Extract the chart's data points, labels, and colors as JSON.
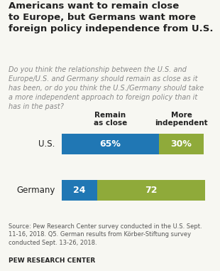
{
  "title": "Americans want to remain close\nto Europe, but Germans want more\nforeign policy independence from U.S.",
  "subtitle": "Do you think the relationship between the U.S. and\nEurope/U.S. and Germany should remain as close as it\nhas been, or do you think the U.S./Germany should take\na more independent approach to foreign policy than it\nhas in the past?",
  "categories": [
    "U.S.",
    "Germany"
  ],
  "remain_close": [
    65,
    24
  ],
  "more_independent": [
    30,
    72
  ],
  "remain_labels": [
    "65%",
    "24"
  ],
  "independent_labels": [
    "30%",
    "72"
  ],
  "col1_header": "Remain\nas close",
  "col2_header": "More\nindependent",
  "bar_color_blue": "#2077b4",
  "bar_color_green": "#8faa3a",
  "source_text": "Source: Pew Research Center survey conducted in the U.S. Sept.\n11-16, 2018. Q5. German results from Körber-Stiftung survey\nconducted Sept. 13-26, 2018.",
  "footer": "PEW RESEARCH CENTER",
  "bg_color": "#f7f7f2",
  "text_color": "#222222",
  "subtitle_color": "#888888",
  "source_color": "#555555"
}
